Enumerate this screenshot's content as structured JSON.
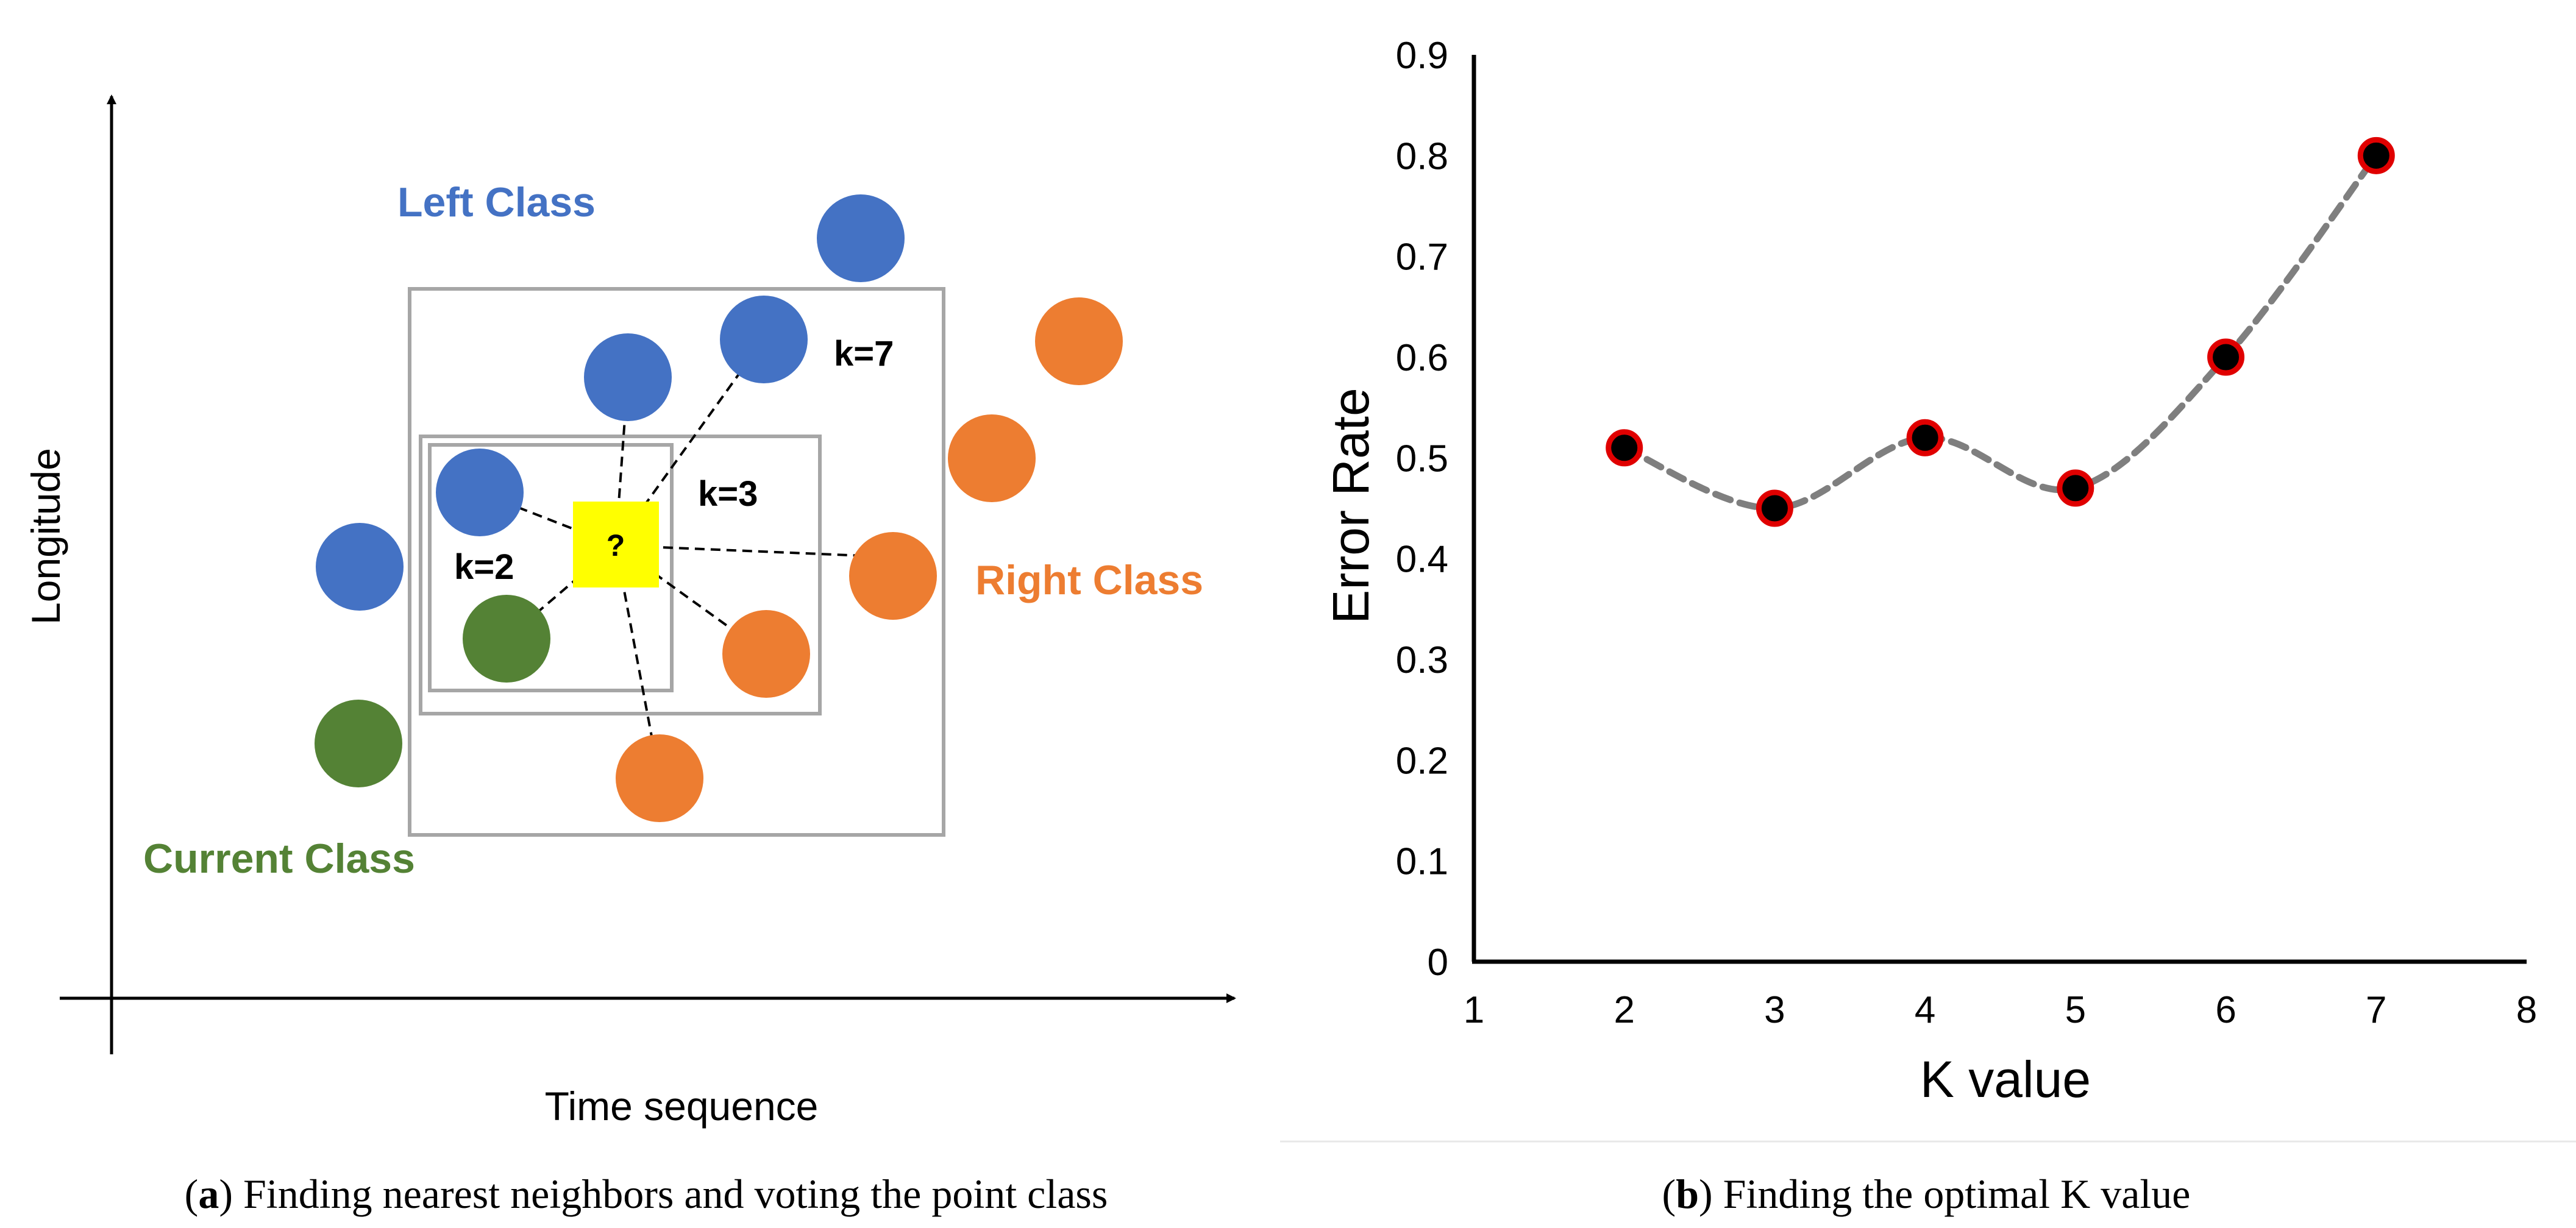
{
  "panel_a": {
    "caption_letter": "a",
    "caption_text": " Finding nearest neighbors and voting the point class",
    "x_axis_label": "Time sequence",
    "y_axis_label": "Longitude",
    "classes": {
      "left": "Left Class",
      "right": "Right Class",
      "current": "Current Class"
    },
    "query_symbol": "?",
    "k_labels": {
      "k2": "k=2",
      "k3": "k=3",
      "k7": "k=7"
    },
    "colors": {
      "left": "#4472C4",
      "right": "#ED7D31",
      "current": "#548235",
      "query": "#FFFF00",
      "box": "#A6A6A6"
    }
  },
  "panel_b": {
    "caption_letter": "b",
    "caption_text": " Finding the optimal K value"
  },
  "chart_data": {
    "type": "line",
    "title": "",
    "xlabel": "K value",
    "ylabel": "Error Rate",
    "xlim": [
      1,
      8
    ],
    "ylim": [
      0,
      0.9
    ],
    "x_ticks": [
      "1",
      "2",
      "3",
      "4",
      "5",
      "6",
      "7",
      "8"
    ],
    "y_ticks": [
      "0",
      "0.1",
      "0.2",
      "0.3",
      "0.4",
      "0.5",
      "0.6",
      "0.7",
      "0.8",
      "0.9"
    ],
    "grid": false,
    "series": [
      {
        "name": "Error Rate",
        "x": [
          2,
          3,
          4,
          5,
          6,
          7
        ],
        "values": [
          0.51,
          0.45,
          0.52,
          0.47,
          0.6,
          0.8
        ],
        "line_color": "#7F7F7F",
        "marker_fill": "#000000",
        "marker_edge": "#E00000"
      }
    ]
  }
}
